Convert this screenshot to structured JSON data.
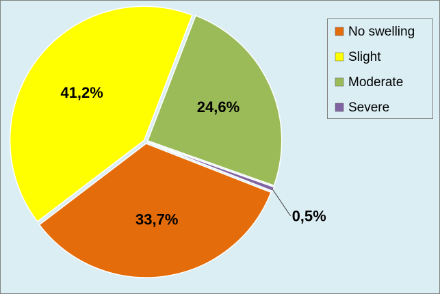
{
  "chart_data": {
    "type": "pie",
    "categories": [
      "No swelling",
      "Slight",
      "Moderate",
      "Severe"
    ],
    "values": [
      33.7,
      41.2,
      24.6,
      0.5
    ],
    "value_labels": [
      "33,7%",
      "41,2%",
      "24,6%",
      "0,5%"
    ],
    "colors": [
      "#e46c0a",
      "#ffff00",
      "#9bbb59",
      "#8064a2"
    ],
    "legend": "right"
  }
}
